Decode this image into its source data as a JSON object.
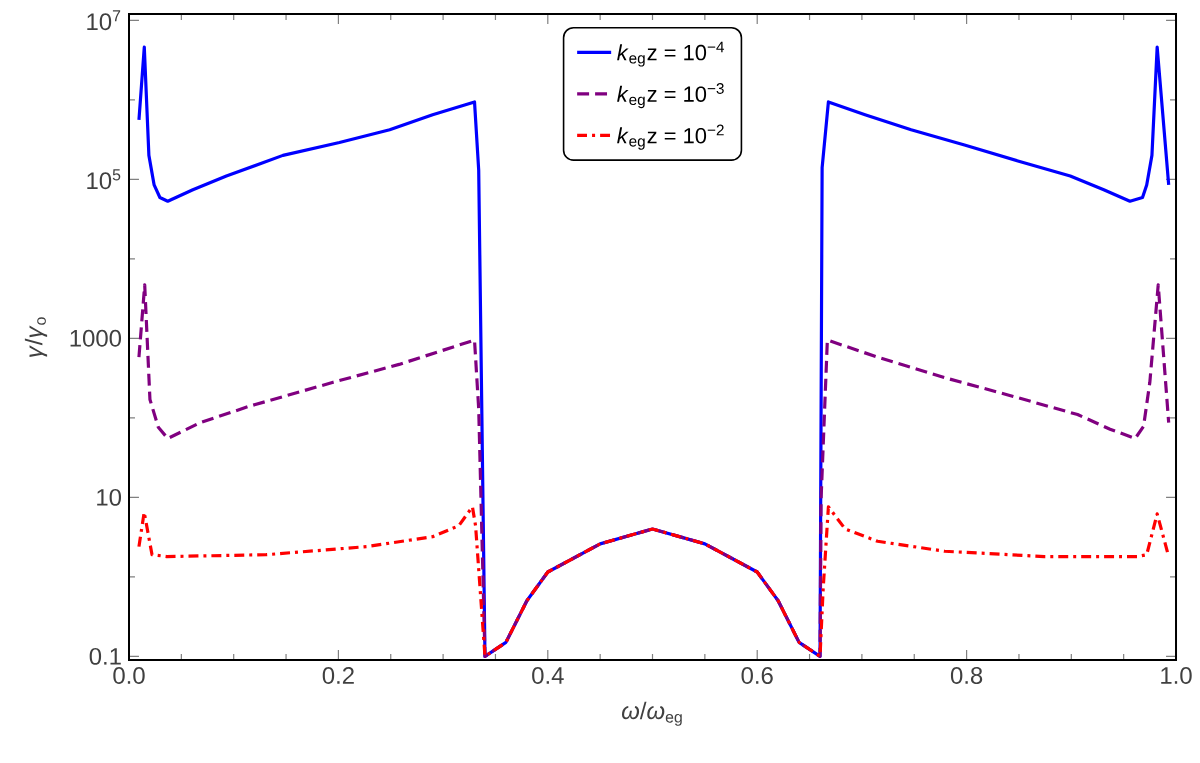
{
  "chart_data": {
    "type": "line",
    "xlabel": "*ω*/*ω*$_{eg}$",
    "ylabel": "*γ*/*γ*$_{o}$",
    "log": "y",
    "xlim": [
      0,
      1
    ],
    "ylim": [
      0.09,
      12000000
    ],
    "xticks": [
      {
        "value": 0,
        "label": "0.0"
      },
      {
        "value": 0.05,
        "label": null
      },
      {
        "value": 0.1,
        "label": null
      },
      {
        "value": 0.15,
        "label": null
      },
      {
        "value": 0.2,
        "label": "0.2"
      },
      {
        "value": 0.25,
        "label": null
      },
      {
        "value": 0.3,
        "label": null
      },
      {
        "value": 0.35,
        "label": null
      },
      {
        "value": 0.4,
        "label": "0.4"
      },
      {
        "value": 0.45,
        "label": null
      },
      {
        "value": 0.5,
        "label": null
      },
      {
        "value": 0.55,
        "label": null
      },
      {
        "value": 0.6,
        "label": "0.6"
      },
      {
        "value": 0.65,
        "label": null
      },
      {
        "value": 0.7,
        "label": null
      },
      {
        "value": 0.75,
        "label": null
      },
      {
        "value": 0.8,
        "label": "0.8"
      },
      {
        "value": 0.85,
        "label": null
      },
      {
        "value": 0.9,
        "label": null
      },
      {
        "value": 0.95,
        "label": null
      },
      {
        "value": 1,
        "label": "1.0"
      }
    ],
    "yticks": [
      0.1,
      {
        "value": 1,
        "label": null
      },
      10,
      {
        "value": 100,
        "label": null
      },
      1000,
      {
        "value": 10000,
        "label": null
      },
      {
        "value": 100000,
        "label": "10$^{5}$"
      },
      {
        "value": 1000000,
        "label": null
      },
      {
        "value": 10000000,
        "label": "10$^{7}$"
      }
    ],
    "legend": "top",
    "series": [
      {
        "name": "*k*$_{eg}$z = 10$^{−4}$",
        "color": "#0000ff",
        "line_style": "solid",
        "x": [
          0.0095,
          0.0146,
          0.019,
          0.024,
          0.0295,
          0.037,
          0.061,
          0.093,
          0.147,
          0.201,
          0.249,
          0.29,
          0.33,
          0.334,
          0.34,
          0.36,
          0.38,
          0.4,
          0.45,
          0.5,
          0.55,
          0.6,
          0.62,
          0.64,
          0.66,
          0.662,
          0.668,
          0.703,
          0.747,
          0.798,
          0.849,
          0.899,
          0.931,
          0.956,
          0.968,
          0.972,
          0.977,
          0.982,
          0.993
        ],
        "values": [
          560000,
          4600000,
          200000,
          85000,
          59000,
          53000,
          74000,
          110000,
          200000,
          290000,
          420000,
          650000,
          940000,
          130000,
          0.1,
          0.15,
          0.5,
          1.15,
          2.6,
          4,
          2.6,
          1.15,
          0.5,
          0.15,
          0.1,
          140000,
          940000,
          650000,
          420000,
          270000,
          170000,
          110000,
          74000,
          53000,
          59000,
          85000,
          200000,
          4600000,
          85000
        ]
      },
      {
        "name": "*k*$_{eg}$z = 10$^{−3}$",
        "color": "#800080",
        "line_style": "dashed",
        "x": [
          0.0095,
          0.015,
          0.02,
          0.028,
          0.037,
          0.068,
          0.115,
          0.195,
          0.258,
          0.33,
          0.334,
          0.34,
          0.36,
          0.38,
          0.4,
          0.45,
          0.5,
          0.55,
          0.6,
          0.62,
          0.64,
          0.66,
          0.661,
          0.667,
          0.715,
          0.779,
          0.842,
          0.906,
          0.937,
          0.961,
          0.969,
          0.975,
          0.983,
          0.993
        ],
        "values": [
          580,
          4700,
          170,
          76,
          55,
          87,
          140,
          280,
          470,
          950,
          130,
          0.1,
          0.15,
          0.5,
          1.15,
          2.6,
          4,
          2.6,
          1.15,
          0.5,
          0.15,
          0.1,
          9.5,
          950,
          580,
          320,
          190,
          110,
          72,
          55,
          78,
          280,
          4700,
          87
        ]
      },
      {
        "name": "*k*$_{eg}$z = 10$^{−2}$",
        "color": "#ff0000",
        "line_style": "dashdot",
        "x": [
          0.0095,
          0.0145,
          0.022,
          0.036,
          0.131,
          0.227,
          0.29,
          0.315,
          0.328,
          0.331,
          0.34,
          0.36,
          0.38,
          0.4,
          0.45,
          0.5,
          0.55,
          0.6,
          0.62,
          0.64,
          0.66,
          0.663,
          0.668,
          0.684,
          0.715,
          0.779,
          0.874,
          0.963,
          0.972,
          0.982,
          0.993
        ],
        "values": [
          2.4,
          6.5,
          1.9,
          1.8,
          1.9,
          2.4,
          3.2,
          4.4,
          7.6,
          4.4,
          0.1,
          0.15,
          0.5,
          1.15,
          2.6,
          4,
          2.6,
          1.15,
          0.5,
          0.15,
          0.1,
          0.71,
          7.6,
          4.0,
          2.8,
          2.1,
          1.8,
          1.8,
          1.9,
          6.2,
          1.8
        ]
      }
    ]
  }
}
